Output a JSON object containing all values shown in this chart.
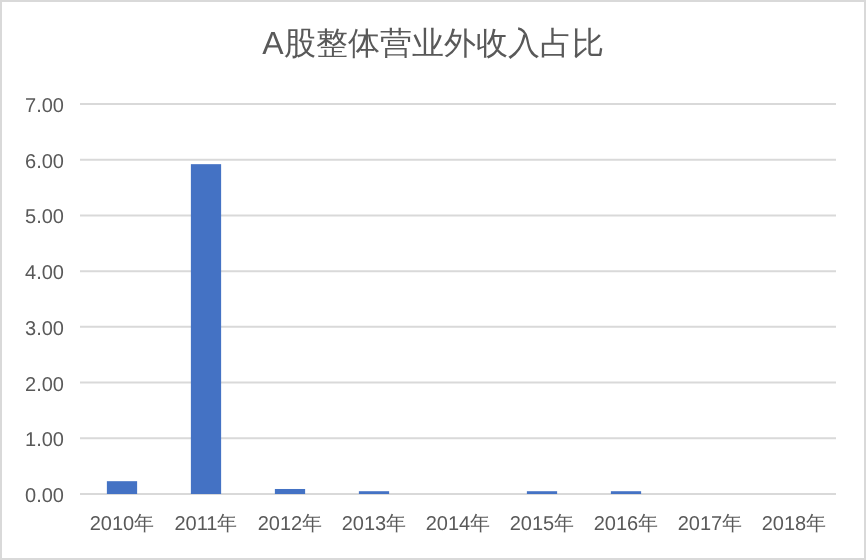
{
  "chart_data": {
    "type": "bar",
    "title": "A股整体营业外收入占比",
    "categories": [
      "2010年",
      "2011年",
      "2012年",
      "2013年",
      "2014年",
      "2015年",
      "2016年",
      "2017年",
      "2018年"
    ],
    "values": [
      0.23,
      5.92,
      0.09,
      0.05,
      0,
      0.05,
      0.05,
      0,
      0
    ],
    "color": "#4472c4",
    "ylim": [
      0,
      7
    ],
    "yticks": [
      {
        "value": 0,
        "label": "0.00"
      },
      {
        "value": 1,
        "label": "1.00"
      },
      {
        "value": 2,
        "label": "2.00"
      },
      {
        "value": 3,
        "label": "3.00"
      },
      {
        "value": 4,
        "label": "4.00"
      },
      {
        "value": 5,
        "label": "5.00"
      },
      {
        "value": 6,
        "label": "6.00"
      },
      {
        "value": 7,
        "label": "7.00"
      }
    ],
    "grid": "y"
  }
}
